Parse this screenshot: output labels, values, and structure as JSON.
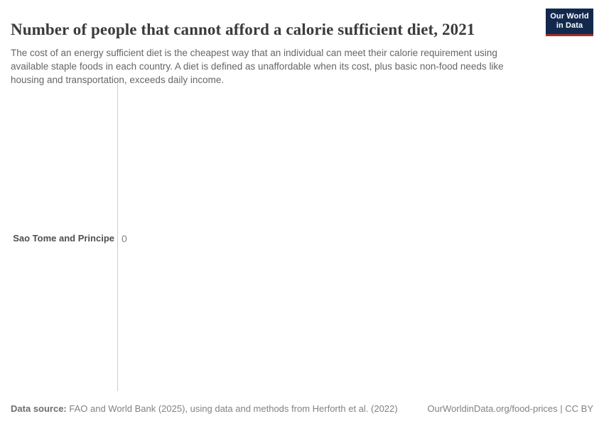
{
  "header": {
    "title": "Number of people that cannot afford a calorie sufficient diet, 2021",
    "subtitle": "The cost of an energy sufficient diet is the cheapest way that an individual can meet their calorie requirement using available staple foods in each country. A diet is defined as unaffordable when its cost, plus basic non-food needs like housing and transportation, exceeds daily income."
  },
  "logo": {
    "line1": "Our World",
    "line2": "in Data",
    "bg_color": "#12294d",
    "accent_color": "#a32e27"
  },
  "chart_data": {
    "type": "bar",
    "orientation": "horizontal",
    "title": "Number of people that cannot afford a calorie sufficient diet, 2021",
    "categories": [
      "Sao Tome and Principe"
    ],
    "values": [
      0
    ],
    "value_labels": [
      "0"
    ],
    "xlabel": "",
    "ylabel": "",
    "axis_color": "#cccccc",
    "grid": false,
    "legend": false
  },
  "footer": {
    "source_label": "Data source:",
    "source_text": " FAO and World Bank (2025), using data and methods from Herforth et al. (2022)",
    "credit": "OurWorldinData.org/food-prices | CC BY"
  }
}
